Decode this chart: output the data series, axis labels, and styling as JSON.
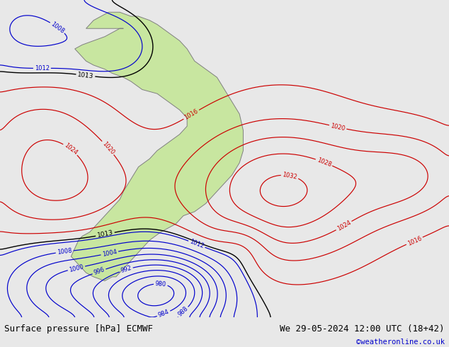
{
  "title_left": "Surface pressure [hPa] ECMWF",
  "title_right": "We 29-05-2024 12:00 UTC (18+42)",
  "copyright": "©weatheronline.co.uk",
  "bg_color": "#e8e8e8",
  "land_color": "#c8e6a0",
  "land_edge_color": "#808080",
  "fig_width": 6.34,
  "fig_height": 4.9,
  "dpi": 100,
  "bottom_bar_color": "#e8e8e8",
  "text_color_left": "#000000",
  "text_color_right": "#000000",
  "text_color_copyright": "#0000cc",
  "font_size_bottom": 9,
  "color_red": "#cc0000",
  "color_blue": "#0000cc",
  "color_black": "#000000",
  "lon_min": -100,
  "lon_max": 20,
  "lat_min": -63,
  "lat_max": 15
}
